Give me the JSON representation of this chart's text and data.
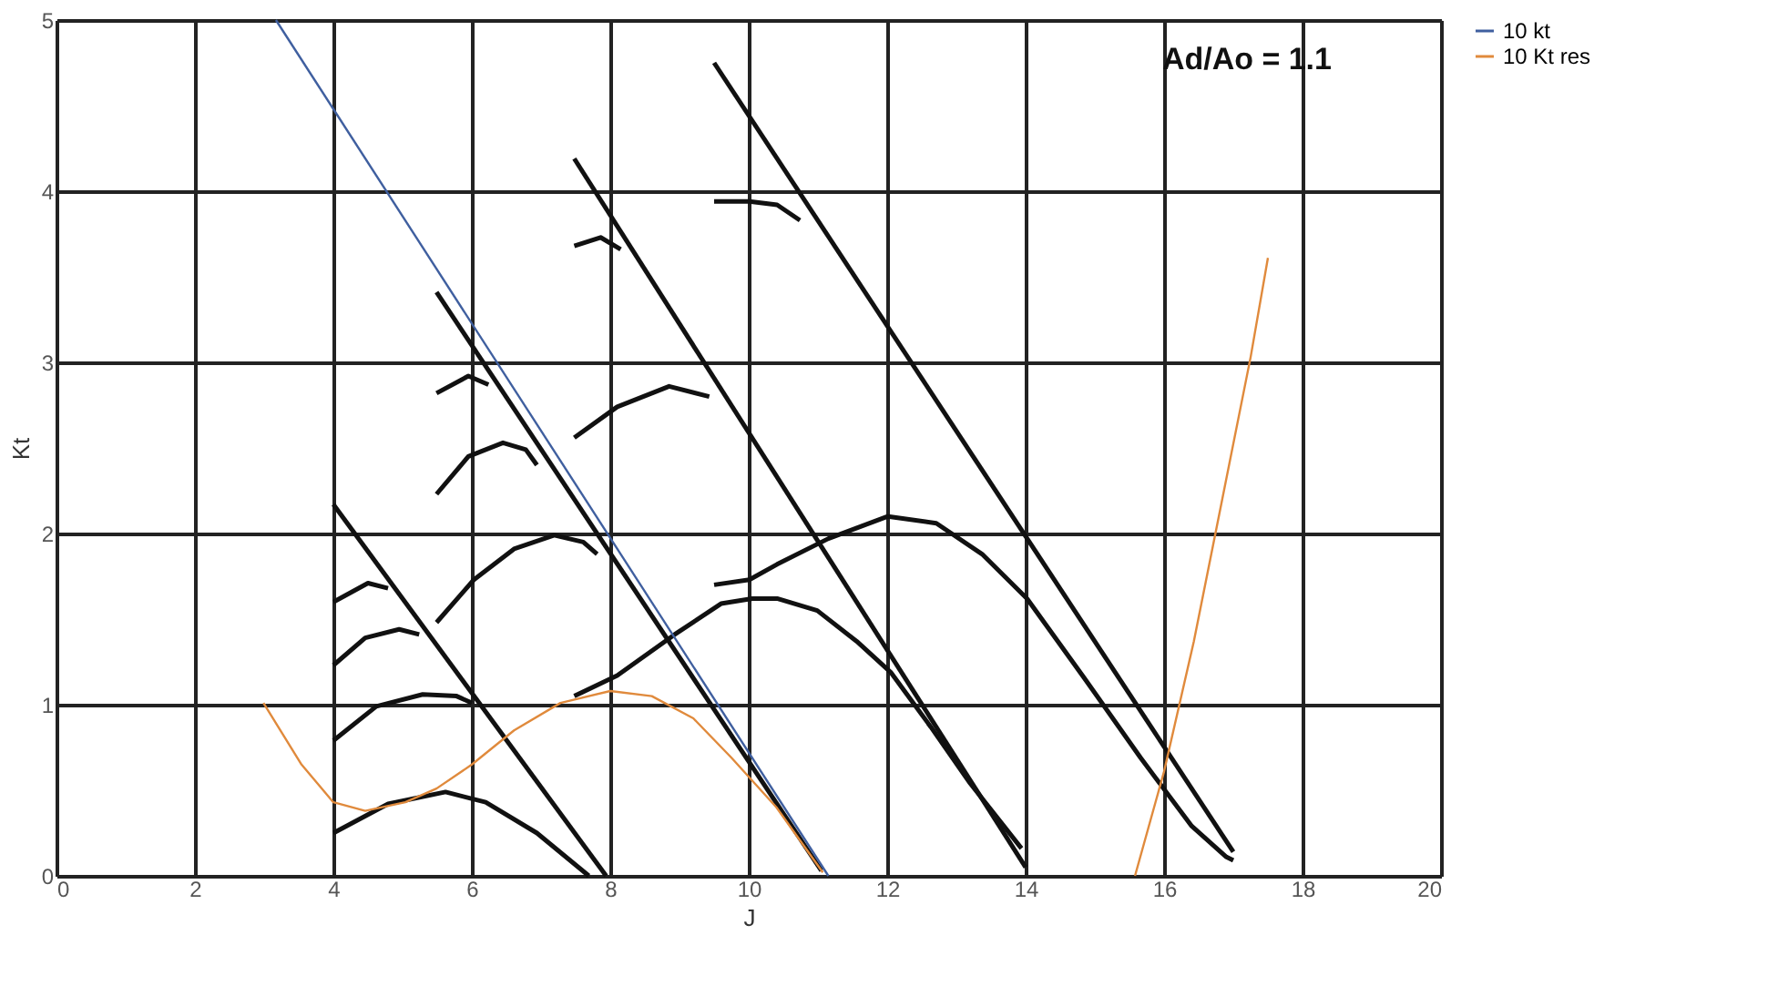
{
  "chart_data": {
    "type": "line",
    "xlabel": "J",
    "ylabel": "Kt",
    "xlim": [
      0,
      20
    ],
    "ylim": [
      0,
      5
    ],
    "xticks": [
      0,
      2,
      4,
      6,
      8,
      10,
      12,
      14,
      16,
      18,
      20
    ],
    "yticks": [
      0,
      1,
      2,
      3,
      4,
      5
    ],
    "grid": true,
    "legend": "right",
    "marker": "none",
    "line_style": "solid",
    "annotations": [
      "Ad/Ao = 1.1"
    ],
    "series": [
      {
        "name": "10 kt",
        "color": "#3f5f9f",
        "x": [
          3.17,
          11.15
        ],
        "values": [
          5.0,
          0
        ]
      },
      {
        "name": "10 Kt res",
        "color": "#e08a3c",
        "x": [
          2.99,
          3.54,
          4,
          4.46,
          5.04,
          5.49,
          6,
          6.61,
          7.28,
          8,
          8.6,
          9.2,
          9.75,
          10.4,
          11.07,
          13,
          15.58,
          16,
          16.43,
          16.84,
          17.25,
          17.5
        ],
        "values": [
          1.01,
          0.65,
          0.43,
          0.38,
          0.43,
          0.51,
          0.65,
          0.85,
          1.01,
          1.08,
          1.05,
          0.92,
          0.69,
          0.4,
          0.02,
          null,
          0,
          0.61,
          1.37,
          2.2,
          3.03,
          3.61
        ]
      },
      {
        "color": "#111111",
        "x": [
          4,
          7.94
        ],
        "values": [
          2.17,
          0
        ]
      },
      {
        "color": "#111111",
        "x": [
          5.49,
          11.05
        ],
        "values": [
          3.41,
          0.03
        ]
      },
      {
        "color": "#111111",
        "x": [
          7.48,
          14
        ],
        "values": [
          4.19,
          0.05
        ]
      },
      {
        "color": "#111111",
        "x": [
          9.5,
          17.0
        ],
        "values": [
          4.75,
          0.14
        ]
      },
      {
        "color": "#111111",
        "x": [
          4,
          4.5,
          4.79
        ],
        "values": [
          1.6,
          1.71,
          1.68
        ]
      },
      {
        "color": "#111111",
        "x": [
          4,
          4.46,
          4.95,
          5.24
        ],
        "values": [
          1.23,
          1.39,
          1.44,
          1.41
        ]
      },
      {
        "color": "#111111",
        "x": [
          4,
          4.62,
          5.29,
          5.78,
          6
        ],
        "values": [
          0.79,
          0.99,
          1.06,
          1.05,
          1.01
        ]
      },
      {
        "color": "#111111",
        "x": [
          4,
          4.79,
          5.62,
          6.2,
          6.94,
          7.69
        ],
        "values": [
          0.25,
          0.42,
          0.49,
          0.43,
          0.25,
          0
        ]
      },
      {
        "color": "#111111",
        "x": [
          5.49,
          5.95,
          6.24
        ],
        "values": [
          2.82,
          2.92,
          2.87
        ]
      },
      {
        "color": "#111111",
        "x": [
          5.49,
          5.95,
          6.45,
          6.78,
          6.94
        ],
        "values": [
          2.23,
          2.45,
          2.53,
          2.49,
          2.4
        ]
      },
      {
        "color": "#111111",
        "x": [
          5.49,
          6.03,
          6.61,
          7.19,
          7.61,
          7.81
        ],
        "values": [
          1.48,
          1.73,
          1.91,
          1.99,
          1.95,
          1.88
        ]
      },
      {
        "color": "#111111",
        "x": [
          7.48,
          7.86,
          8.15
        ],
        "values": [
          3.68,
          3.73,
          3.66
        ]
      },
      {
        "color": "#111111",
        "x": [
          7.48,
          8.1,
          8.85,
          9.43
        ],
        "values": [
          2.56,
          2.74,
          2.86,
          2.8
        ]
      },
      {
        "color": "#111111",
        "x": [
          7.48,
          8.1,
          8.93,
          9.6,
          10.05,
          10.41,
          10.99,
          11.56,
          12.05,
          12.63,
          13.2,
          13.94
        ],
        "values": [
          1.05,
          1.17,
          1.41,
          1.59,
          1.62,
          1.62,
          1.55,
          1.37,
          1.19,
          0.87,
          0.54,
          0.16
        ]
      },
      {
        "color": "#111111",
        "x": [
          9.5,
          10.01,
          10.41,
          10.74
        ],
        "values": [
          3.94,
          3.94,
          3.92,
          3.83
        ]
      },
      {
        "color": "#111111",
        "x": [
          9.5,
          10.01,
          10.41,
          11.15,
          12.01,
          12.71,
          13.37,
          14.02,
          14.84,
          15.66,
          16.4,
          16.9,
          17.0
        ],
        "values": [
          1.7,
          1.73,
          1.82,
          1.97,
          2.1,
          2.06,
          1.88,
          1.62,
          1.16,
          0.69,
          0.29,
          0.11,
          0.09
        ]
      }
    ]
  }
}
